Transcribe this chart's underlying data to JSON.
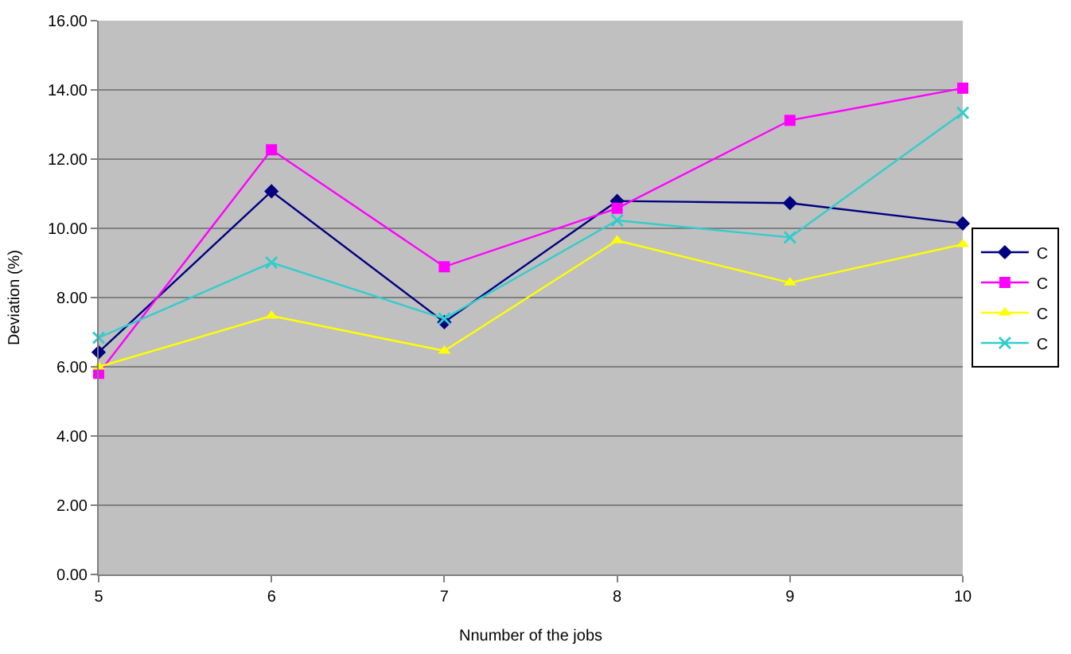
{
  "chart_data": {
    "type": "line",
    "xlabel": "Nnumber of the jobs",
    "ylabel": "Deviation (%)",
    "x": [
      5,
      6,
      7,
      8,
      9,
      10
    ],
    "series": [
      {
        "name": "C",
        "color": "#000080",
        "marker": "diamond",
        "values": [
          6.42,
          11.07,
          7.29,
          10.79,
          10.73,
          10.14
        ]
      },
      {
        "name": "C",
        "color": "#ff00ff",
        "marker": "square",
        "values": [
          5.81,
          12.27,
          8.89,
          10.58,
          13.12,
          14.05
        ]
      },
      {
        "name": "C",
        "color": "#ffff00",
        "marker": "triangle",
        "values": [
          6.0,
          7.47,
          6.46,
          9.65,
          8.43,
          9.54
        ]
      },
      {
        "name": "C",
        "color": "#33cccc",
        "marker": "cross",
        "values": [
          6.84,
          9.01,
          7.39,
          10.23,
          9.74,
          13.34
        ]
      }
    ],
    "xlim": [
      5,
      10
    ],
    "xticks": [
      5,
      6,
      7,
      8,
      9,
      10
    ],
    "ylim": [
      0,
      16
    ],
    "yticks": [
      {
        "value": 0,
        "label": "0.00"
      },
      {
        "value": 2,
        "label": "2.00"
      },
      {
        "value": 4,
        "label": "4.00"
      },
      {
        "value": 6,
        "label": "6.00"
      },
      {
        "value": 8,
        "label": "8.00"
      },
      {
        "value": 10,
        "label": "10.00"
      },
      {
        "value": 12,
        "label": "12.00"
      },
      {
        "value": 14,
        "label": "14.00"
      },
      {
        "value": 16,
        "label": "16.00"
      }
    ],
    "grid": "y",
    "legend": "right",
    "line_style": "solid"
  }
}
